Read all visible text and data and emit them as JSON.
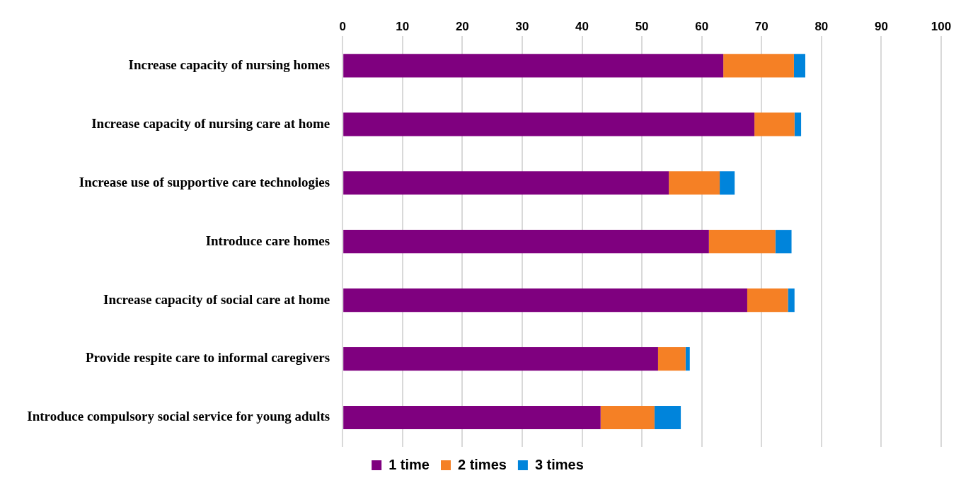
{
  "chart_data": {
    "type": "bar",
    "orientation": "horizontal",
    "stacked": true,
    "categories": [
      "Increase capacity of nursing homes",
      "Increase capacity of nursing care at home",
      "Increase use of supportive care technologies",
      "Introduce care homes",
      "Increase capacity of social care at home",
      "Provide respite care to informal caregivers",
      "Introduce compulsory social service for young adults"
    ],
    "series": [
      {
        "name": "1 time",
        "color": "#7f007f",
        "values": [
          63.6,
          68.8,
          54.5,
          61.2,
          67.6,
          52.7,
          43.1
        ]
      },
      {
        "name": "2 times",
        "color": "#f58025",
        "values": [
          11.8,
          6.7,
          8.5,
          11.1,
          6.8,
          4.6,
          9.0
        ]
      },
      {
        "name": "3 times",
        "color": "#0084db",
        "values": [
          1.9,
          1.1,
          2.5,
          2.7,
          1.1,
          0.7,
          4.4
        ]
      }
    ],
    "xlim": [
      0,
      100
    ],
    "xticks": [
      0,
      10,
      20,
      30,
      40,
      50,
      60,
      70,
      80,
      90,
      100
    ],
    "grid": "x",
    "legend": "bottom"
  }
}
